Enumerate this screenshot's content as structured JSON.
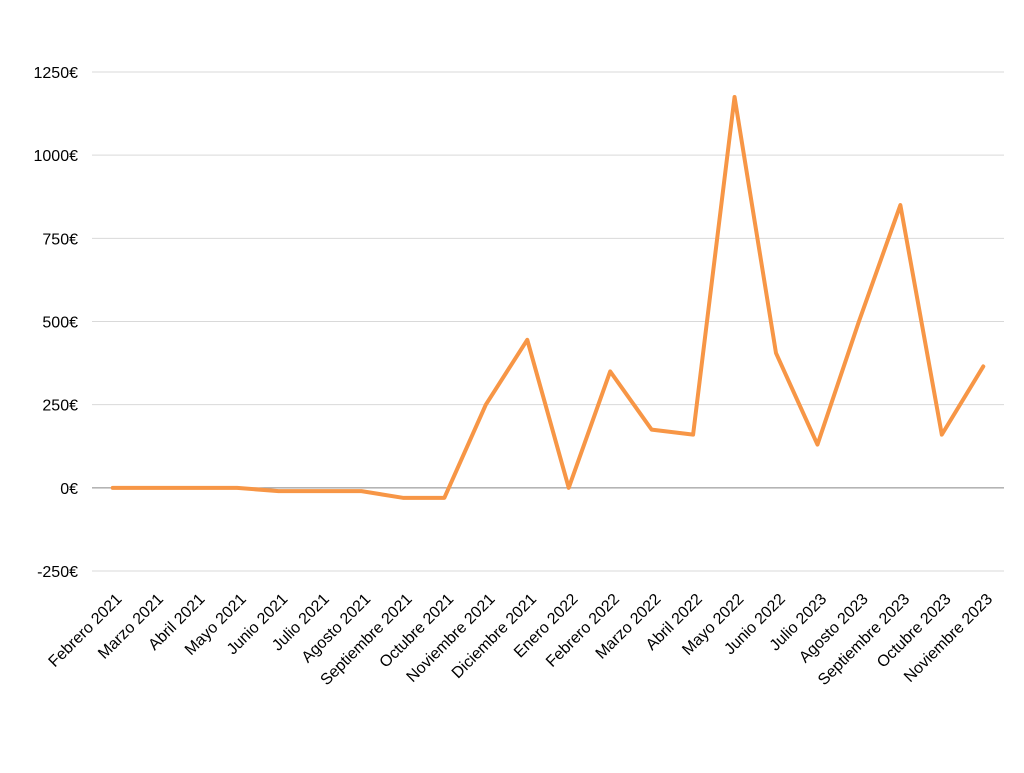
{
  "chart_data": {
    "type": "line",
    "categories": [
      "Febrero 2021",
      "Marzo 2021",
      "Abril 2021",
      "Mayo 2021",
      "Junio 2021",
      "Julio 2021",
      "Agosto 2021",
      "Septiembre 2021",
      "Octubre 2021",
      "Noviembre 2021",
      "Diciembre 2021",
      "Enero 2022",
      "Febrero 2022",
      "Marzo 2022",
      "Abril 2022",
      "Mayo 2022",
      "Junio 2022",
      "Julio 2023",
      "Agosto 2023",
      "Septiembre 2023",
      "Octubre 2023",
      "Noviembre 2023"
    ],
    "values": [
      0,
      0,
      0,
      0,
      -10,
      -10,
      -10,
      -30,
      -30,
      250,
      445,
      0,
      350,
      175,
      160,
      1175,
      405,
      130,
      500,
      850,
      160,
      365
    ],
    "color": "#f79646",
    "ylim": [
      -250,
      1250
    ],
    "yticks": [
      {
        "value": -250,
        "label": "-250€"
      },
      {
        "value": 0,
        "label": "0€"
      },
      {
        "value": 250,
        "label": "250€"
      },
      {
        "value": 500,
        "label": "500€"
      },
      {
        "value": 750,
        "label": "750€"
      },
      {
        "value": 1000,
        "label": "1000€"
      },
      {
        "value": 1250,
        "label": "1250€"
      }
    ],
    "grid": true
  }
}
